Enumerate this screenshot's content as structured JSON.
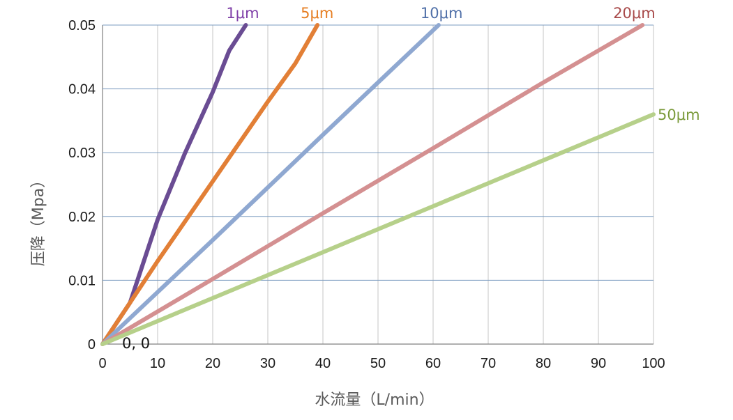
{
  "chart_data": {
    "type": "line",
    "title": "",
    "xlabel": "水流量（L/min）",
    "ylabel": "压降（Mpa）",
    "xlim": [
      0,
      100
    ],
    "ylim": [
      0,
      0.05
    ],
    "x_ticks": [
      "0",
      "10",
      "20",
      "30",
      "40",
      "50",
      "60",
      "70",
      "80",
      "90",
      "100"
    ],
    "y_ticks": [
      "0",
      "0.01",
      "0.02",
      "0.03",
      "0.04",
      "0.05"
    ],
    "grid": true,
    "origin_annotation": "0, 0",
    "series": [
      {
        "name": "1μm",
        "color": "#7f3fa8",
        "line_color": "#6a4c93",
        "points": [
          [
            0,
            0
          ],
          [
            5,
            0.0065
          ],
          [
            10,
            0.0195
          ],
          [
            15,
            0.03
          ],
          [
            20,
            0.0395
          ],
          [
            23,
            0.046
          ],
          [
            26,
            0.05
          ]
        ]
      },
      {
        "name": "5μm",
        "color": "#e67e22",
        "line_color": "#e27f36",
        "points": [
          [
            0,
            0
          ],
          [
            10,
            0.013
          ],
          [
            20,
            0.0255
          ],
          [
            30,
            0.038
          ],
          [
            35,
            0.044
          ],
          [
            39,
            0.05
          ]
        ]
      },
      {
        "name": "10μm",
        "color": "#4f6fa8",
        "line_color": "#8fa8d1",
        "points": [
          [
            0,
            0
          ],
          [
            20,
            0.0163
          ],
          [
            40,
            0.0328
          ],
          [
            50,
            0.041
          ],
          [
            61,
            0.05
          ]
        ]
      },
      {
        "name": "20μm",
        "color": "#a84a4a",
        "line_color": "#d49091",
        "points": [
          [
            0,
            0
          ],
          [
            20,
            0.0102
          ],
          [
            40,
            0.0205
          ],
          [
            60,
            0.0307
          ],
          [
            80,
            0.041
          ],
          [
            98,
            0.05
          ]
        ]
      },
      {
        "name": "50μm",
        "color": "#7a9a3a",
        "line_color": "#b6d08a",
        "points": [
          [
            0,
            0
          ],
          [
            20,
            0.0072
          ],
          [
            40,
            0.0144
          ],
          [
            60,
            0.0216
          ],
          [
            80,
            0.0288
          ],
          [
            100,
            0.036
          ]
        ]
      }
    ]
  }
}
